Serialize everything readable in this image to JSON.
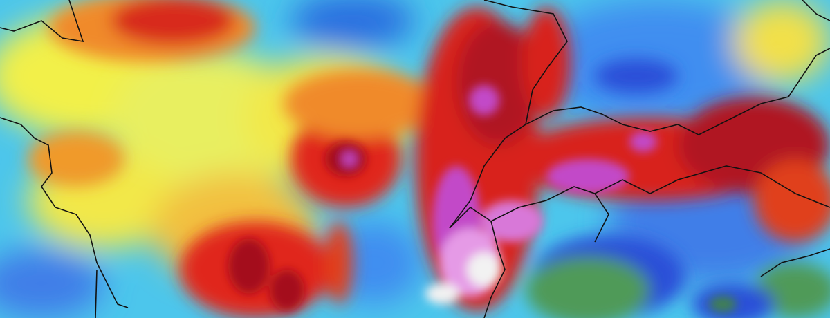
{
  "map": {
    "palette": {
      "dark_blue": "#2b4fd8",
      "blue": "#3f8ef0",
      "cyan": "#38c8f0",
      "light_cyan": "#7ee0e8",
      "yellow": "#f2f04a",
      "orange": "#f59a2a",
      "red": "#e0281c",
      "dark_red": "#a4101a",
      "magenta": "#c24ac8",
      "pink": "#e59ae6",
      "white": "#f2f2f2",
      "green": "#4f9a58",
      "border": "#111111"
    }
  }
}
